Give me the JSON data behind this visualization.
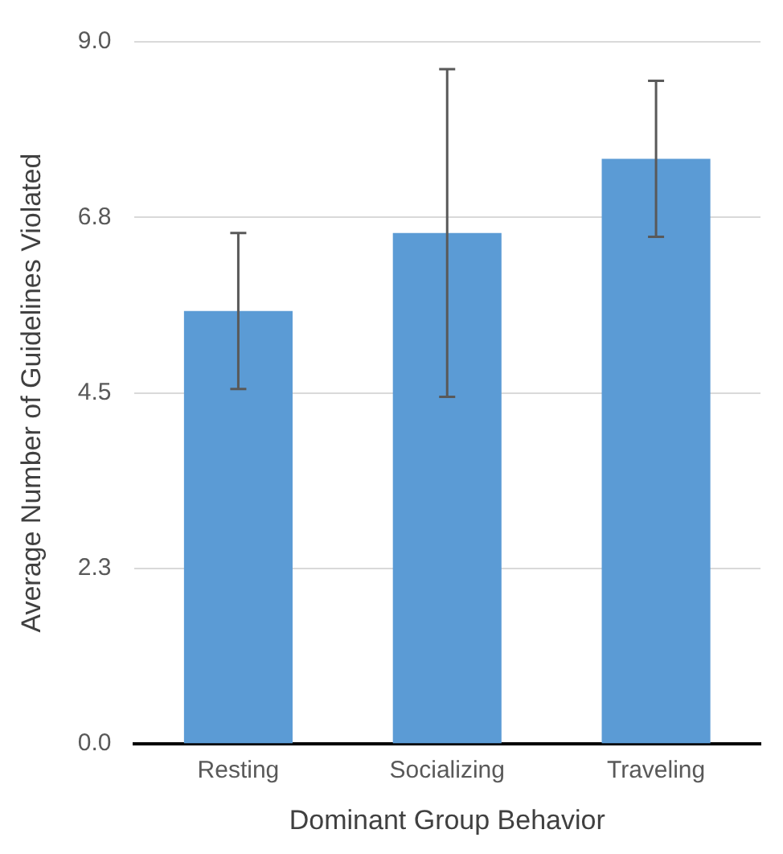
{
  "chart_data": {
    "type": "bar",
    "xlabel": "Dominant Group Behavior",
    "ylabel": "Average Number of Guidelines Violated",
    "categories": [
      "Resting",
      "Socializing",
      "Traveling"
    ],
    "values": [
      5.55,
      6.55,
      7.5
    ],
    "errors": [
      1.0,
      2.1,
      1.0
    ],
    "color": "#5b9bd5",
    "ylim": [
      0,
      9
    ],
    "yticks": [
      {
        "value": 0,
        "label": "0.0"
      },
      {
        "value": 2.25,
        "label": "2.3"
      },
      {
        "value": 4.5,
        "label": "4.5"
      },
      {
        "value": 6.75,
        "label": "6.8"
      },
      {
        "value": 9,
        "label": "9.0"
      }
    ],
    "grid": "y",
    "legend": false
  }
}
